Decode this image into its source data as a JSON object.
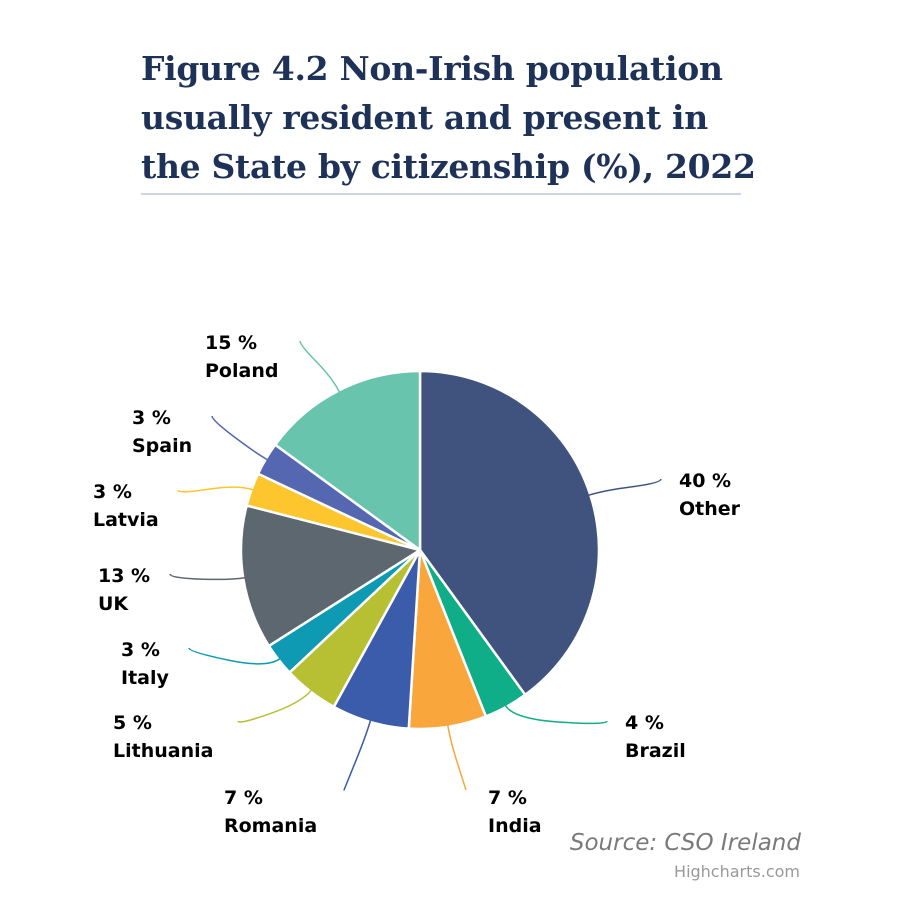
{
  "chart_data": {
    "type": "pie",
    "title": "Figure 4.2 Non-Irish population usually resident and present in the State by citizenship (%), 2022",
    "unit": "%",
    "categories": [
      "Other",
      "Brazil",
      "India",
      "Romania",
      "Lithuania",
      "Italy",
      "UK",
      "Latvia",
      "Spain",
      "Poland"
    ],
    "values": [
      40,
      4,
      7,
      7,
      5,
      3,
      13,
      3,
      3,
      15
    ],
    "colors": [
      "#40537f",
      "#0fae88",
      "#f9a73c",
      "#3b5cab",
      "#b7bf33",
      "#0e9ab3",
      "#5c6770",
      "#fdc52e",
      "#5567b1",
      "#68c4ac"
    ],
    "data_labels": [
      "40 %",
      "4 %",
      "7 %",
      "7 %",
      "5 %",
      "3 %",
      "13 %",
      "3 %",
      "3 %",
      "15 %"
    ],
    "start_angle_deg": 0,
    "direction": "clockwise",
    "legend": "none"
  },
  "source": "Source: CSO Ireland",
  "credits": "Highcharts.com"
}
